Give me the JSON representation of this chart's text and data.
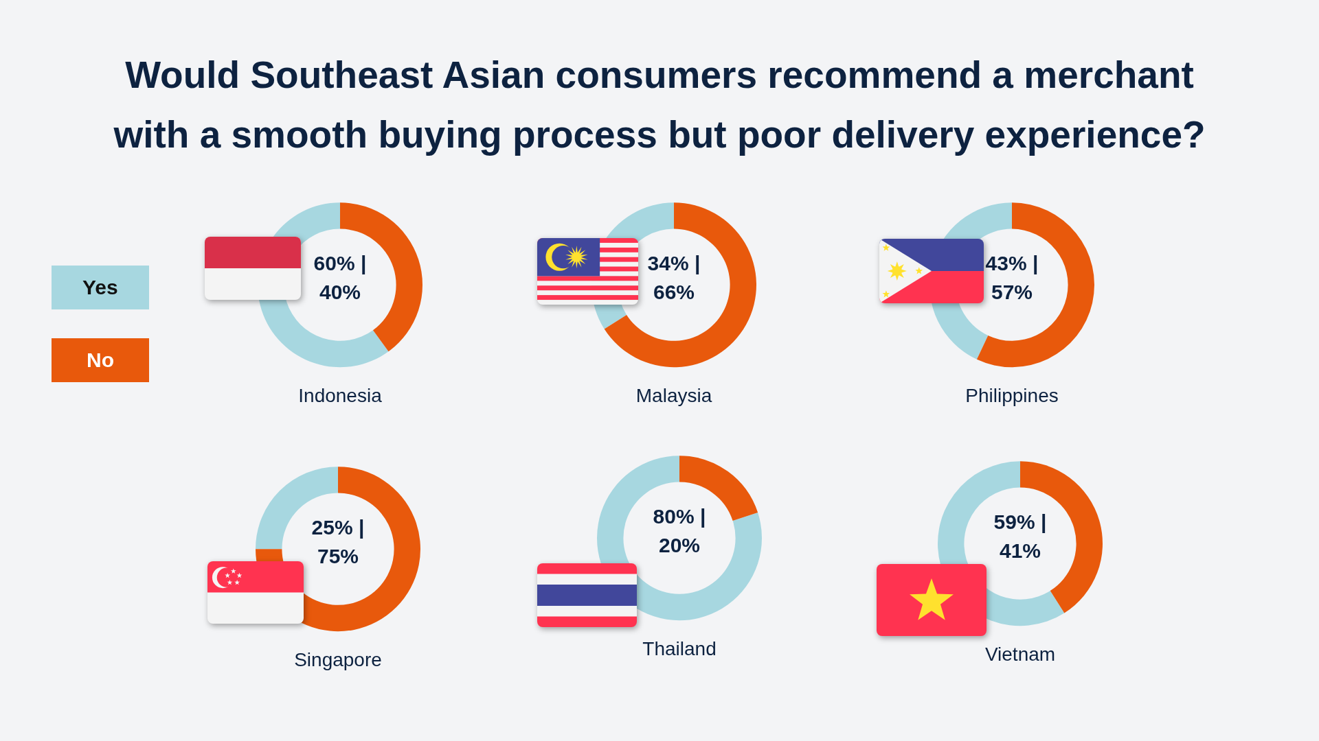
{
  "chart_data": [
    {
      "type": "other",
      "title": "Would Southeast Asian consumers recommend a merchant with a smooth buying process but poor delivery experience?"
    },
    {
      "type": "donut",
      "title": "Indonesia",
      "categories": [
        "Yes",
        "No"
      ],
      "values": [
        60,
        40
      ],
      "colors": [
        "#a7d7e0",
        "#e8590c"
      ],
      "annotations": [
        "60% |",
        "40%"
      ],
      "legend": "left"
    },
    {
      "type": "donut",
      "title": "Malaysia",
      "categories": [
        null,
        null
      ],
      "values": [
        34,
        66
      ],
      "colors": [
        "#a7d7e0",
        "#e8590c"
      ],
      "annotations": [
        "34% |",
        "66%"
      ]
    },
    {
      "type": "donut",
      "title": "Philippines",
      "categories": [
        null,
        null
      ],
      "values": [
        43,
        57
      ],
      "colors": [
        "#a7d7e0",
        "#e8590c"
      ],
      "annotations": [
        "43% |",
        "57%"
      ]
    },
    {
      "type": "donut",
      "title": "Singapore",
      "categories": [
        null,
        null
      ],
      "values": [
        25,
        75
      ],
      "colors": [
        "#a7d7e0",
        "#e8590c"
      ],
      "annotations": [
        "25% |",
        "75%"
      ]
    },
    {
      "type": "donut",
      "title": "Thailand",
      "categories": [
        null,
        null
      ],
      "values": [
        80,
        20
      ],
      "colors": [
        "#a7d7e0",
        "#e8590c"
      ],
      "annotations": [
        "80% |",
        "20%"
      ]
    },
    {
      "type": "donut",
      "title": "Vietnam",
      "categories": [
        null,
        null
      ],
      "values": [
        59,
        41
      ],
      "colors": [
        "#a7d7e0",
        "#e8590c"
      ],
      "annotations": [
        "59% |",
        "41%"
      ]
    }
  ]
}
